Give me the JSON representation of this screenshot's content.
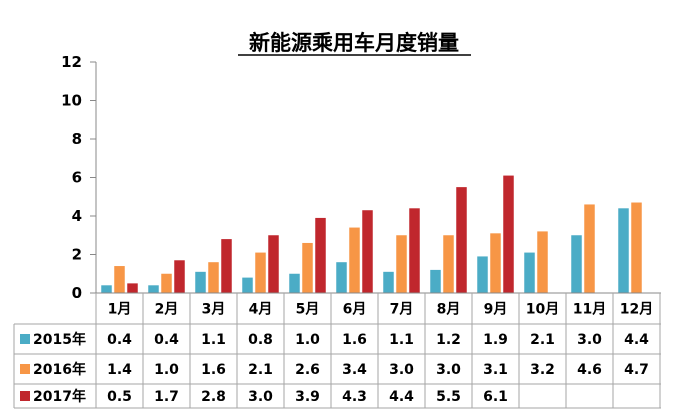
{
  "chart_data": {
    "type": "bar",
    "title": "新能源乘用车月度销量",
    "categories": [
      "1月",
      "2月",
      "3月",
      "4月",
      "5月",
      "6月",
      "7月",
      "8月",
      "9月",
      "10月",
      "11月",
      "12月"
    ],
    "series": [
      {
        "name": "2015年",
        "color": "#4bacc6",
        "values": [
          0.4,
          0.4,
          1.1,
          0.8,
          1.0,
          1.6,
          1.1,
          1.2,
          1.9,
          2.1,
          3.0,
          4.4
        ],
        "labels": [
          "0.4",
          "0.4",
          "1.1",
          "0.8",
          "1.0",
          "1.6",
          "1.1",
          "1.2",
          "1.9",
          "2.1",
          "3.0",
          "4.4"
        ]
      },
      {
        "name": "2016年",
        "color": "#f79646",
        "values": [
          1.4,
          1.0,
          1.6,
          2.1,
          2.6,
          3.4,
          3.0,
          3.0,
          3.1,
          3.2,
          4.6,
          4.7
        ],
        "labels": [
          "1.4",
          "1.0",
          "1.6",
          "2.1",
          "2.6",
          "3.4",
          "3.0",
          "3.0",
          "3.1",
          "3.2",
          "4.6",
          "4.7"
        ]
      },
      {
        "name": "2017年",
        "color": "#c0272d",
        "values": [
          0.5,
          1.7,
          2.8,
          3.0,
          3.9,
          4.3,
          4.4,
          5.5,
          6.1,
          null,
          null,
          null
        ],
        "labels": [
          "0.5",
          "1.7",
          "2.8",
          "3.0",
          "3.9",
          "4.3",
          "4.4",
          "5.5",
          "6.1",
          "",
          "",
          ""
        ]
      }
    ],
    "ylim": [
      0,
      12
    ],
    "yticks": [
      0,
      2,
      4,
      6,
      8,
      10,
      12
    ],
    "xlabel": "",
    "ylabel": "",
    "grid": false,
    "legend": "data-table"
  }
}
